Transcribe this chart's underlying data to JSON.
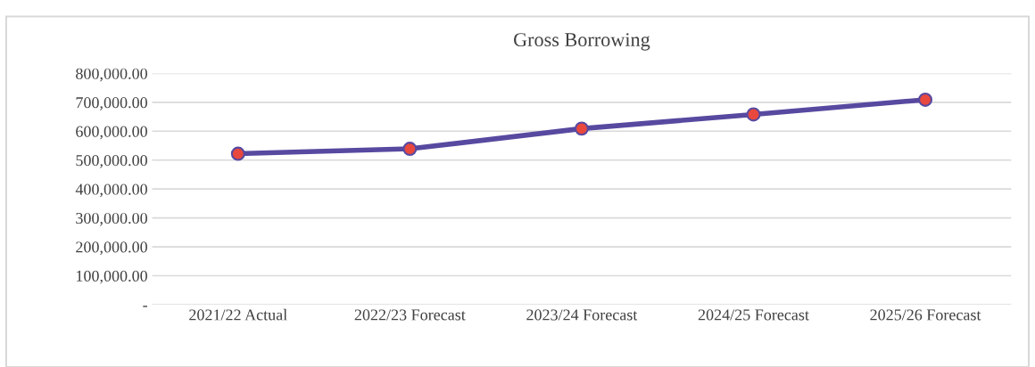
{
  "chart_data": {
    "type": "line",
    "title": "Gross Borrowing",
    "categories": [
      "2021/22 Actual",
      "2022/23 Forecast",
      "2023/24 Forecast",
      "2024/25 Forecast",
      "2025/26 Forecast"
    ],
    "series": [
      {
        "color": "#5849a0",
        "values": [
          522000,
          539000,
          609000,
          658000,
          709000
        ]
      }
    ],
    "ylim": [
      0,
      800000
    ],
    "yticks": [
      {
        "value": 0,
        "label": "-"
      },
      {
        "value": 100000,
        "label": "100,000.00"
      },
      {
        "value": 200000,
        "label": "200,000.00"
      },
      {
        "value": 300000,
        "label": "300,000.00"
      },
      {
        "value": 400000,
        "label": "400,000.00"
      },
      {
        "value": 500000,
        "label": "500,000.00"
      },
      {
        "value": 600000,
        "label": "600,000.00"
      },
      {
        "value": 700000,
        "label": "700,000.00"
      },
      {
        "value": 800000,
        "label": "800,000.00"
      }
    ],
    "grid": "y",
    "marker": "circle",
    "line_style": "solid",
    "legend": false
  }
}
